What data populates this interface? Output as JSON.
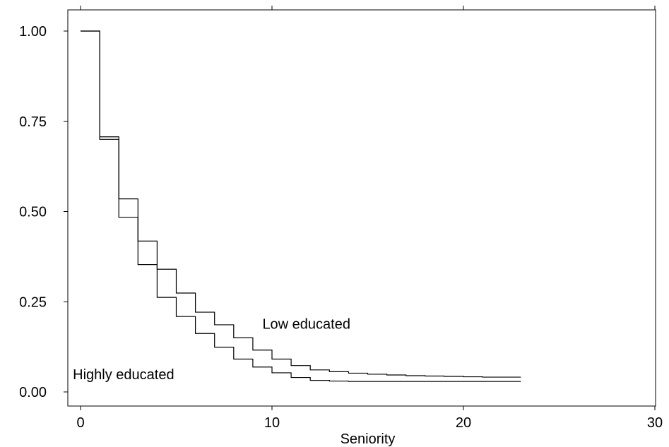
{
  "chart_data": {
    "type": "line",
    "step": true,
    "xlabel": "Seniority",
    "ylabel": "",
    "xlim": [
      0,
      30
    ],
    "ylim": [
      0,
      1
    ],
    "xticks": [
      0,
      10,
      20,
      30
    ],
    "yticks": [
      "0.00",
      "0.25",
      "0.50",
      "0.75",
      "1.00"
    ],
    "grid": false,
    "series": [
      {
        "name": "Low educated",
        "x": [
          0,
          1,
          2,
          3,
          4,
          5,
          6,
          7,
          8,
          9,
          10,
          11,
          12,
          13,
          14,
          15,
          16,
          17,
          18,
          19,
          20,
          21,
          22,
          23
        ],
        "y": [
          1.0,
          0.707,
          0.535,
          0.418,
          0.34,
          0.274,
          0.221,
          0.186,
          0.15,
          0.116,
          0.091,
          0.073,
          0.061,
          0.056,
          0.052,
          0.049,
          0.047,
          0.045,
          0.044,
          0.043,
          0.042,
          0.041,
          0.041,
          0.041
        ]
      },
      {
        "name": "Highly educated",
        "x": [
          0,
          1,
          2,
          3,
          4,
          5,
          6,
          7,
          8,
          9,
          10,
          11,
          12,
          13,
          14,
          15,
          16,
          17,
          18,
          19,
          20,
          21,
          22,
          23
        ],
        "y": [
          1.0,
          0.7,
          0.484,
          0.353,
          0.262,
          0.209,
          0.162,
          0.124,
          0.091,
          0.069,
          0.053,
          0.04,
          0.032,
          0.03,
          0.029,
          0.029,
          0.029,
          0.029,
          0.029,
          0.029,
          0.029,
          0.029,
          0.029,
          0.029
        ]
      }
    ],
    "annotations": [
      {
        "text": "Low educated",
        "x": 9.5,
        "y": 0.175
      },
      {
        "text": "Highly educated",
        "x": -0.4,
        "y": 0.035
      }
    ]
  }
}
